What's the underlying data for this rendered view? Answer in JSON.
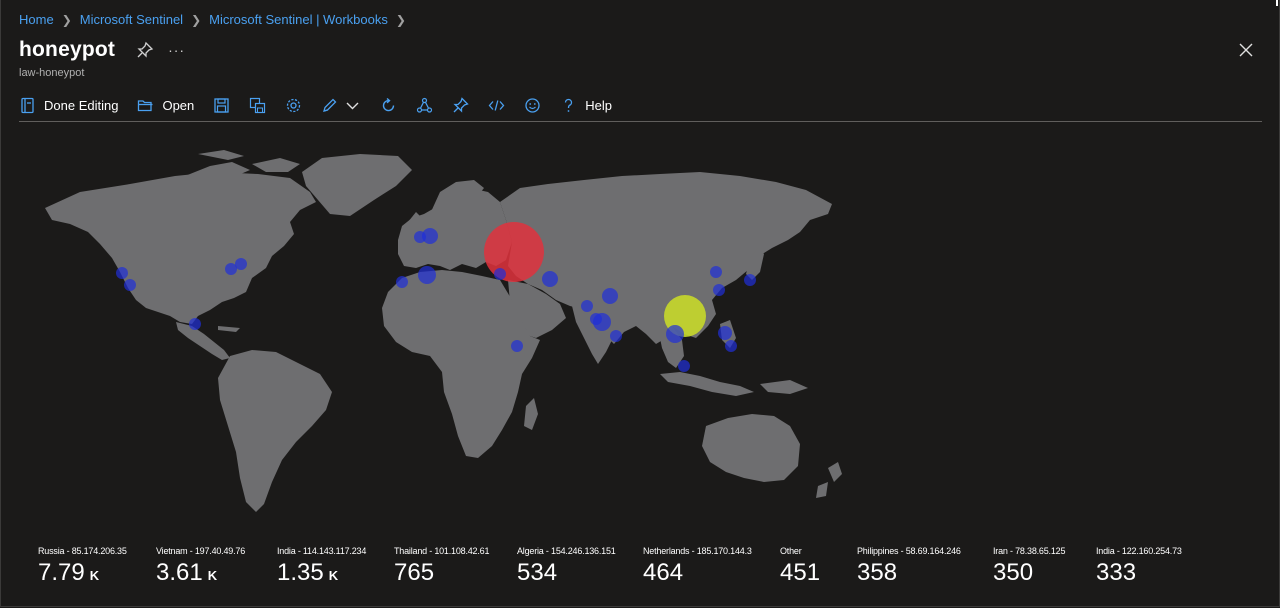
{
  "breadcrumb": [
    "Home",
    "Microsoft Sentinel",
    "Microsoft Sentinel | Workbooks"
  ],
  "header": {
    "title": "honeypot",
    "subtitle": "law-honeypot",
    "more_label": "···"
  },
  "toolbar": {
    "done_editing": "Done Editing",
    "open": "Open",
    "help": "Help"
  },
  "colors": {
    "accent": "#4aa0f0",
    "land": "#6e6e70",
    "background": "#1b1a19",
    "bubble_low": "#1f2fd8",
    "bubble_mid": "#c7d82a",
    "bubble_high": "#e0333d"
  },
  "stats": [
    {
      "label": "Russia - 85.174.206.35",
      "value": "7.79",
      "unit": "K"
    },
    {
      "label": "Vietnam - 197.40.49.76",
      "value": "3.61",
      "unit": "K"
    },
    {
      "label": "India - 114.143.117.234",
      "value": "1.35",
      "unit": "K"
    },
    {
      "label": "Thailand - 101.108.42.61",
      "value": "765",
      "unit": ""
    },
    {
      "label": "Algeria - 154.246.136.151",
      "value": "534",
      "unit": ""
    },
    {
      "label": "Netherlands - 185.170.144.3",
      "value": "464",
      "unit": ""
    },
    {
      "label": "Other",
      "value": "451",
      "unit": ""
    },
    {
      "label": "Philippines - 58.69.164.246",
      "value": "358",
      "unit": ""
    },
    {
      "label": "Iran - 78.38.65.125",
      "value": "350",
      "unit": ""
    },
    {
      "label": "India - 122.160.254.73",
      "value": "333",
      "unit": ""
    }
  ]
}
